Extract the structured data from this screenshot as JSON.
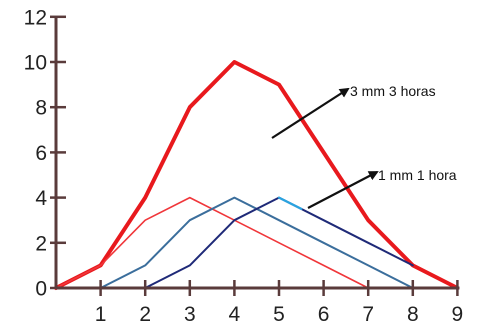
{
  "chart_data": {
    "type": "line",
    "x": [
      0,
      1,
      2,
      3,
      4,
      5,
      6,
      7,
      8,
      9
    ],
    "x_ticks": [
      "1",
      "2",
      "3",
      "4",
      "5",
      "6",
      "7",
      "8",
      "9"
    ],
    "y_ticks": [
      "0",
      "2",
      "4",
      "6",
      "8",
      "10",
      "12"
    ],
    "xlim": [
      0,
      9
    ],
    "ylim": [
      0,
      12
    ],
    "grid": false,
    "series": [
      {
        "name": "3 mm 3 horas",
        "color": "#e8191d",
        "width": 4,
        "points": [
          [
            0,
            0
          ],
          [
            1,
            1
          ],
          [
            2,
            4
          ],
          [
            3,
            8
          ],
          [
            4,
            10
          ],
          [
            5,
            9
          ],
          [
            6,
            6
          ],
          [
            7,
            3
          ],
          [
            8,
            1
          ],
          [
            9,
            0
          ]
        ]
      },
      {
        "name": "",
        "color": "#f0363a",
        "width": 1.6,
        "points": [
          [
            0,
            0
          ],
          [
            1,
            1
          ],
          [
            2,
            3
          ],
          [
            3,
            4
          ],
          [
            4,
            3
          ],
          [
            5,
            2
          ],
          [
            6,
            1
          ],
          [
            7,
            0
          ]
        ]
      },
      {
        "name": "",
        "color": "#3b6e9c",
        "width": 2,
        "points": [
          [
            1,
            0
          ],
          [
            2,
            1
          ],
          [
            3,
            3
          ],
          [
            4,
            4
          ],
          [
            5,
            3
          ],
          [
            6,
            2
          ],
          [
            7,
            1
          ],
          [
            8,
            0
          ]
        ]
      },
      {
        "name": "1 mm 1 hora",
        "color": "#1f2a78",
        "width": 2,
        "points": [
          [
            2,
            0
          ],
          [
            3,
            1
          ],
          [
            4,
            3
          ],
          [
            5,
            4
          ],
          [
            6,
            3
          ],
          [
            7,
            2
          ],
          [
            8,
            1
          ]
        ]
      }
    ],
    "annotations": [
      {
        "text": "3 mm 3 horas",
        "target_series": 0
      },
      {
        "text": "1 mm 1 hora",
        "target_series": 3
      }
    ],
    "colors": {
      "axis": "#5a3b3b",
      "annotation": "#111111",
      "highlight": "#2aa3e0"
    }
  }
}
